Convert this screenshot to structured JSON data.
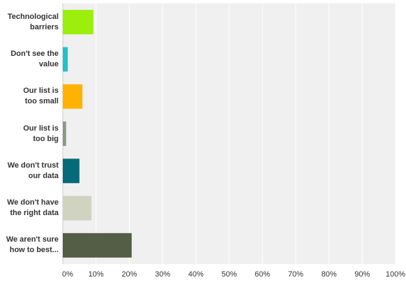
{
  "chart_data": {
    "type": "hbar",
    "categories": [
      "Technological\nbarriers",
      "Don't see the\nvalue",
      "Our list is\ntoo small",
      "Our list is\ntoo big",
      "We don't trust\nour data",
      "We don't have\nthe right data",
      "We aren't sure\nhow to best..."
    ],
    "values": [
      9.2,
      1.5,
      5.9,
      1,
      5,
      8.6,
      20.7
    ],
    "colors": [
      "#9cee0c",
      "#1fc3c9",
      "#ffb202",
      "#8a9a82",
      "#056a7a",
      "#cfd3bf",
      "#545d45"
    ],
    "xlim": [
      0,
      100
    ],
    "xticks": [
      {
        "value": 0,
        "label": "0%"
      },
      {
        "value": 10,
        "label": "10%"
      },
      {
        "value": 20,
        "label": "20%"
      },
      {
        "value": 30,
        "label": "30%"
      },
      {
        "value": 40,
        "label": "40%"
      },
      {
        "value": 50,
        "label": "50%"
      },
      {
        "value": 60,
        "label": "60%"
      },
      {
        "value": 70,
        "label": "70%"
      },
      {
        "value": 80,
        "label": "80%"
      },
      {
        "value": 90,
        "label": "90%"
      },
      {
        "value": 100,
        "label": "100%"
      }
    ],
    "grid": true
  }
}
